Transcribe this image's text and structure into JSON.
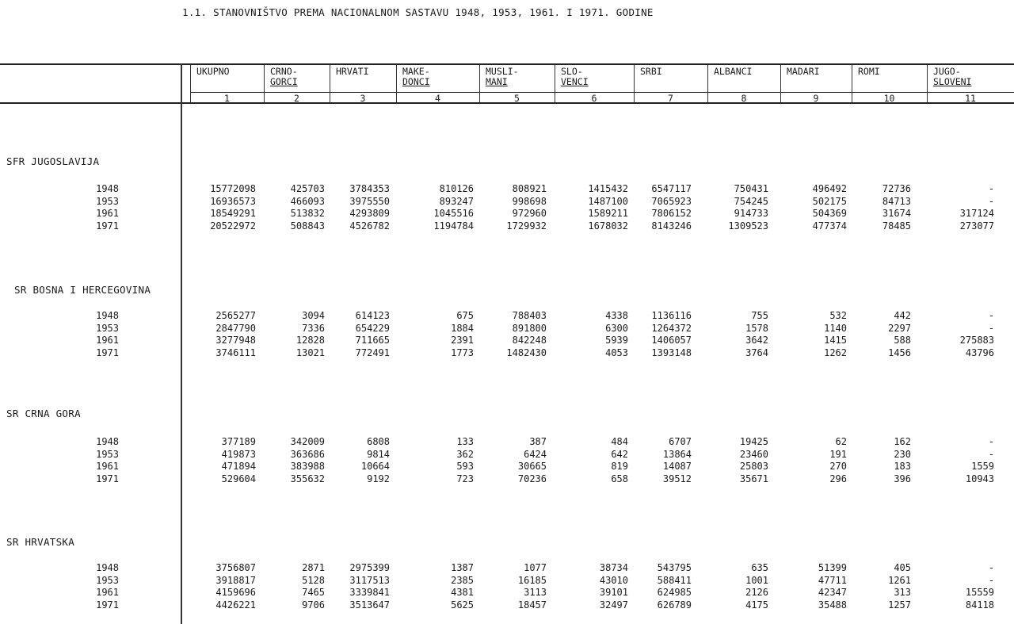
{
  "title": "1.1. STANOVNIŠTVO PREMA NACIONALNOM SASTAVU 1948, 1953, 1961. I 1971. GODINE",
  "columns": [
    {
      "label": [
        "UKUPNO"
      ],
      "number": "1"
    },
    {
      "label": [
        "CRNO-",
        "GORCI"
      ],
      "number": "2"
    },
    {
      "label": [
        "HRVATI"
      ],
      "number": "3"
    },
    {
      "label": [
        "MAKE-",
        "DONCI"
      ],
      "number": "4"
    },
    {
      "label": [
        "MUSLI-",
        "MANI"
      ],
      "number": "5"
    },
    {
      "label": [
        "SLO-",
        "VENCI"
      ],
      "number": "6"
    },
    {
      "label": [
        "SRBI"
      ],
      "number": "7"
    },
    {
      "label": [
        "ALBANCI"
      ],
      "number": "8"
    },
    {
      "label": [
        "MADARI"
      ],
      "number": "9"
    },
    {
      "label": [
        "ROMI"
      ],
      "number": "10"
    },
    {
      "label": [
        "JUGO-",
        "SLOVENI"
      ],
      "number": "11"
    }
  ],
  "sections": [
    {
      "name": "SFR JUGOSLAVIJA",
      "rows": [
        {
          "year": "1948",
          "values": [
            "15772098",
            "425703",
            "3784353",
            "810126",
            "808921",
            "1415432",
            "6547117",
            "750431",
            "496492",
            "72736",
            "-"
          ]
        },
        {
          "year": "1953",
          "values": [
            "16936573",
            "466093",
            "3975550",
            "893247",
            "998698",
            "1487100",
            "7065923",
            "754245",
            "502175",
            "84713",
            "-"
          ]
        },
        {
          "year": "1961",
          "values": [
            "18549291",
            "513832",
            "4293809",
            "1045516",
            "972960",
            "1589211",
            "7806152",
            "914733",
            "504369",
            "31674",
            "317124"
          ]
        },
        {
          "year": "1971",
          "values": [
            "20522972",
            "508843",
            "4526782",
            "1194784",
            "1729932",
            "1678032",
            "8143246",
            "1309523",
            "477374",
            "78485",
            "273077"
          ]
        }
      ]
    },
    {
      "name": "SR BOSNA I HERCEGOVINA",
      "rows": [
        {
          "year": "1948",
          "values": [
            "2565277",
            "3094",
            "614123",
            "675",
            "788403",
            "4338",
            "1136116",
            "755",
            "532",
            "442",
            "-"
          ]
        },
        {
          "year": "1953",
          "values": [
            "2847790",
            "7336",
            "654229",
            "1884",
            "891800",
            "6300",
            "1264372",
            "1578",
            "1140",
            "2297",
            "-"
          ]
        },
        {
          "year": "1961",
          "values": [
            "3277948",
            "12828",
            "711665",
            "2391",
            "842248",
            "5939",
            "1406057",
            "3642",
            "1415",
            "588",
            "275883"
          ]
        },
        {
          "year": "1971",
          "values": [
            "3746111",
            "13021",
            "772491",
            "1773",
            "1482430",
            "4053",
            "1393148",
            "3764",
            "1262",
            "1456",
            "43796"
          ]
        }
      ]
    },
    {
      "name": "SR CRNA GORA",
      "rows": [
        {
          "year": "1948",
          "values": [
            "377189",
            "342009",
            "6808",
            "133",
            "387",
            "484",
            "6707",
            "19425",
            "62",
            "162",
            "-"
          ]
        },
        {
          "year": "1953",
          "values": [
            "419873",
            "363686",
            "9814",
            "362",
            "6424",
            "642",
            "13864",
            "23460",
            "191",
            "230",
            "-"
          ]
        },
        {
          "year": "1961",
          "values": [
            "471894",
            "383988",
            "10664",
            "593",
            "30665",
            "819",
            "14087",
            "25803",
            "270",
            "183",
            "1559"
          ]
        },
        {
          "year": "1971",
          "values": [
            "529604",
            "355632",
            "9192",
            "723",
            "70236",
            "658",
            "39512",
            "35671",
            "296",
            "396",
            "10943"
          ]
        }
      ]
    },
    {
      "name": "SR HRVATSKA",
      "rows": [
        {
          "year": "1948",
          "values": [
            "3756807",
            "2871",
            "2975399",
            "1387",
            "1077",
            "38734",
            "543795",
            "635",
            "51399",
            "405",
            "-"
          ]
        },
        {
          "year": "1953",
          "values": [
            "3918817",
            "5128",
            "3117513",
            "2385",
            "16185",
            "43010",
            "588411",
            "1001",
            "47711",
            "1261",
            "-"
          ]
        },
        {
          "year": "1961",
          "values": [
            "4159696",
            "7465",
            "3339841",
            "4381",
            "3113",
            "39101",
            "624985",
            "2126",
            "42347",
            "313",
            "15559"
          ]
        },
        {
          "year": "1971",
          "values": [
            "4426221",
            "9706",
            "3513647",
            "5625",
            "18457",
            "32497",
            "626789",
            "4175",
            "35488",
            "1257",
            "84118"
          ]
        }
      ]
    }
  ]
}
